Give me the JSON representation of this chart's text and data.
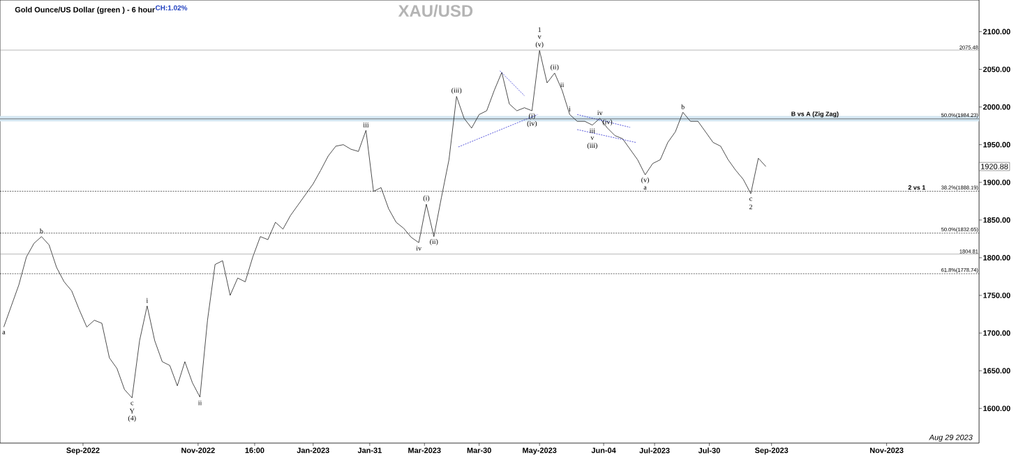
{
  "chart_data": {
    "type": "line",
    "title": "XAU/USD",
    "subtitle": "Gold Ounce/US Dollar (green ) - 6 hour",
    "x": [
      "2022-07-21",
      "2022-07-25",
      "2022-07-29",
      "2022-08-02",
      "2022-08-06",
      "2022-08-10",
      "2022-08-14",
      "2022-08-18",
      "2022-08-22",
      "2022-08-26",
      "2022-08-30",
      "2022-09-03",
      "2022-09-07",
      "2022-09-11",
      "2022-09-15",
      "2022-09-19",
      "2022-09-23",
      "2022-09-27",
      "2022-10-01",
      "2022-10-05",
      "2022-10-09",
      "2022-10-13",
      "2022-10-17",
      "2022-10-21",
      "2022-10-25",
      "2022-10-29",
      "2022-11-02",
      "2022-11-06",
      "2022-11-10",
      "2022-11-14",
      "2022-11-18",
      "2022-11-22",
      "2022-11-26",
      "2022-11-30",
      "2022-12-04",
      "2022-12-08",
      "2022-12-12",
      "2022-12-16",
      "2022-12-20",
      "2022-12-24",
      "2022-12-28",
      "2023-01-01",
      "2023-01-05",
      "2023-01-09",
      "2023-01-13",
      "2023-01-17",
      "2023-01-21",
      "2023-01-25",
      "2023-01-29",
      "2023-02-02",
      "2023-02-06",
      "2023-02-10",
      "2023-02-14",
      "2023-02-18",
      "2023-02-22",
      "2023-02-26",
      "2023-03-02",
      "2023-03-06",
      "2023-03-10",
      "2023-03-14",
      "2023-03-18",
      "2023-03-22",
      "2023-03-26",
      "2023-03-30",
      "2023-04-03",
      "2023-04-07",
      "2023-04-11",
      "2023-04-15",
      "2023-04-19",
      "2023-04-23",
      "2023-04-27",
      "2023-05-01",
      "2023-05-05",
      "2023-05-09",
      "2023-05-13",
      "2023-05-17",
      "2023-05-21",
      "2023-05-25",
      "2023-05-29",
      "2023-06-02",
      "2023-06-06",
      "2023-06-10",
      "2023-06-14",
      "2023-06-18",
      "2023-06-22",
      "2023-06-26",
      "2023-06-30",
      "2023-07-04",
      "2023-07-08",
      "2023-07-12",
      "2023-07-16",
      "2023-07-20",
      "2023-07-24",
      "2023-07-28",
      "2023-08-01",
      "2023-08-05",
      "2023-08-09",
      "2023-08-13",
      "2023-08-17",
      "2023-08-21",
      "2023-08-25",
      "2023-08-29"
    ],
    "series": [
      {
        "color": "#000000",
        "values": [
          1708,
          1736,
          1764,
          1801,
          1819,
          1828,
          1817,
          1787,
          1768,
          1756,
          1731,
          1708,
          1717,
          1713,
          1667,
          1653,
          1625,
          1614,
          1690,
          1736,
          1690,
          1662,
          1657,
          1630,
          1662,
          1634,
          1615,
          1717,
          1791,
          1796,
          1750,
          1773,
          1768,
          1801,
          1828,
          1824,
          1847,
          1838,
          1856,
          1870,
          1884,
          1898,
          1916,
          1935,
          1948,
          1950,
          1944,
          1941,
          1969,
          1888,
          1893,
          1865,
          1847,
          1839,
          1827,
          1820,
          1871,
          1828,
          1880,
          1930,
          2014,
          1985,
          1972,
          1990,
          1995,
          2022,
          2046,
          2004,
          1995,
          1999,
          1995,
          2075,
          2032,
          2045,
          2022,
          1990,
          1981,
          1981,
          1976,
          1985,
          1972,
          1962,
          1958,
          1944,
          1930,
          1910,
          1925,
          1930,
          1953,
          1967,
          1993,
          1981,
          1981,
          1967,
          1953,
          1948,
          1930,
          1916,
          1904,
          1885,
          1932,
          1921
        ]
      },
      {
        "color": "#2b2bd0",
        "line_style": "dashed",
        "x": [
          "2023-03-19",
          "2023-04-30"
        ],
        "values": [
          1947,
          1990
        ]
      },
      {
        "color": "#2b2bd0",
        "line_style": "dashed",
        "x": [
          "2023-04-10",
          "2023-04-23"
        ],
        "values": [
          2048,
          2015
        ]
      },
      {
        "color": "#2b2bd0",
        "line_style": "dashed",
        "x": [
          "2023-05-21",
          "2023-06-21"
        ],
        "values": [
          1970,
          1953
        ]
      },
      {
        "color": "#2b2bd0",
        "line_style": "dashed",
        "x": [
          "2023-05-21",
          "2023-06-18"
        ],
        "values": [
          1990,
          1973
        ]
      }
    ],
    "xlim": [
      "2022-07-19",
      "2023-12-20"
    ],
    "xticks": [
      {
        "value": "2022-09-01",
        "label": "Sep-2022"
      },
      {
        "value": "2022-11-01",
        "label": "Nov-2022"
      },
      {
        "value": "2022-12-01",
        "label": "16:00"
      },
      {
        "value": "2023-01-01",
        "label": "Jan-2023"
      },
      {
        "value": "2023-01-31",
        "label": "Jan-31"
      },
      {
        "value": "2023-03-01",
        "label": "Mar-2023"
      },
      {
        "value": "2023-03-30",
        "label": "Mar-30"
      },
      {
        "value": "2023-05-01",
        "label": "May-2023"
      },
      {
        "value": "2023-06-04",
        "label": "Jun-04"
      },
      {
        "value": "2023-07-01",
        "label": "Jul-2023"
      },
      {
        "value": "2023-07-30",
        "label": "Jul-30"
      },
      {
        "value": "2023-09-01",
        "label": "Sep-2023"
      },
      {
        "value": "2023-11-01",
        "label": "Nov-2023"
      }
    ],
    "ylim": [
      1554,
      2142
    ],
    "yticks": [
      {
        "value": 1600,
        "label": "1600.00"
      },
      {
        "value": 1650,
        "label": "1650.00"
      },
      {
        "value": 1700,
        "label": "1700.00"
      },
      {
        "value": 1750,
        "label": "1750.00"
      },
      {
        "value": 1800,
        "label": "1800.00"
      },
      {
        "value": 1850,
        "label": "1850.00"
      },
      {
        "value": 1900,
        "label": "1900.00"
      },
      {
        "value": 1950,
        "label": "1950.00"
      },
      {
        "value": 2000,
        "label": "2000.00"
      },
      {
        "value": 2050,
        "label": "2050.00"
      },
      {
        "value": 2100,
        "label": "2100.00"
      }
    ],
    "ref_lines": [
      {
        "axis": "y",
        "value": 2075.48,
        "label": "2075.48",
        "color": "#888888",
        "line_style": "solid"
      },
      {
        "axis": "y",
        "value": 1984.23,
        "label": "50.0%(1984.23)",
        "color": "#333333",
        "line_style": "solid"
      },
      {
        "axis": "y",
        "value": 1888.19,
        "label": "38.2%(1888.19)",
        "color": "#000000",
        "line_style": "dashed"
      },
      {
        "axis": "y",
        "value": 1832.65,
        "label": "50.0%(1832.65)",
        "color": "#000000",
        "line_style": "dashed"
      },
      {
        "axis": "y",
        "value": 1778.74,
        "label": "61.8%(1778.74)",
        "color": "#000000",
        "line_style": "dashed"
      },
      {
        "axis": "y",
        "value": 1804.81,
        "label": "1804.81",
        "color": "#888888",
        "line_style": "solid"
      }
    ],
    "bands": [
      {
        "axis": "y",
        "from": 1981,
        "to": 1988,
        "color": "#d4e6f1"
      }
    ],
    "annotations": [
      "CH:1.02%",
      "Aug 29 2023",
      {
        "text": "a",
        "x": "2022-07-21",
        "y": 1708
      },
      {
        "text": "b",
        "x": "2022-08-10",
        "y": 1828
      },
      {
        "text": "c",
        "x": "2022-09-27",
        "y": 1614
      },
      {
        "text": "Y",
        "x": "2022-09-27",
        "y": 1614
      },
      {
        "text": "(4)",
        "x": "2022-09-27",
        "y": 1614
      },
      {
        "text": "i",
        "x": "2022-10-05",
        "y": 1736
      },
      {
        "text": "ii",
        "x": "2022-11-02",
        "y": 1615
      },
      {
        "text": "iii",
        "x": "2023-01-29",
        "y": 1969
      },
      {
        "text": "iv",
        "x": "2023-02-26",
        "y": 1820
      },
      {
        "text": "(i)",
        "x": "2023-03-02",
        "y": 1871
      },
      {
        "text": "(ii)",
        "x": "2023-03-06",
        "y": 1828
      },
      {
        "text": "(iii)",
        "x": "2023-03-18",
        "y": 2014
      },
      {
        "text": "(i)",
        "x": "2023-04-27",
        "y": 1995
      },
      {
        "text": "(iv)",
        "x": "2023-04-27",
        "y": 1995
      },
      {
        "text": "(v)",
        "x": "2023-05-01",
        "y": 2075
      },
      {
        "text": "v",
        "x": "2023-05-01",
        "y": 2075
      },
      {
        "text": "1",
        "x": "2023-05-01",
        "y": 2075
      },
      {
        "text": "(ii)",
        "x": "2023-05-09",
        "y": 2045
      },
      {
        "text": "ii",
        "x": "2023-05-13",
        "y": 2022
      },
      {
        "text": "i",
        "x": "2023-05-17",
        "y": 1990
      },
      {
        "text": "iv",
        "x": "2023-06-02",
        "y": 1985
      },
      {
        "text": "iii",
        "x": "2023-05-29",
        "y": 1976
      },
      {
        "text": "v",
        "x": "2023-05-29",
        "y": 1976
      },
      {
        "text": "(iii)",
        "x": "2023-05-29",
        "y": 1976
      },
      {
        "text": "(iv)",
        "x": "2023-06-06",
        "y": 1972
      },
      {
        "text": "(v)",
        "x": "2023-06-26",
        "y": 1910
      },
      {
        "text": "a",
        "x": "2023-06-26",
        "y": 1910
      },
      {
        "text": "b",
        "x": "2023-07-16",
        "y": 1993
      },
      {
        "text": "c",
        "x": "2023-08-21",
        "y": 1885
      },
      {
        "text": "2",
        "x": "2023-08-21",
        "y": 1885
      },
      {
        "text": "B vs A (Zig Zag)",
        "x": "2023-09-24",
        "y": 1984.23
      },
      {
        "text": "2 vs 1",
        "x": "2023-11-17",
        "y": 1888.19
      },
      "1920.88"
    ]
  }
}
